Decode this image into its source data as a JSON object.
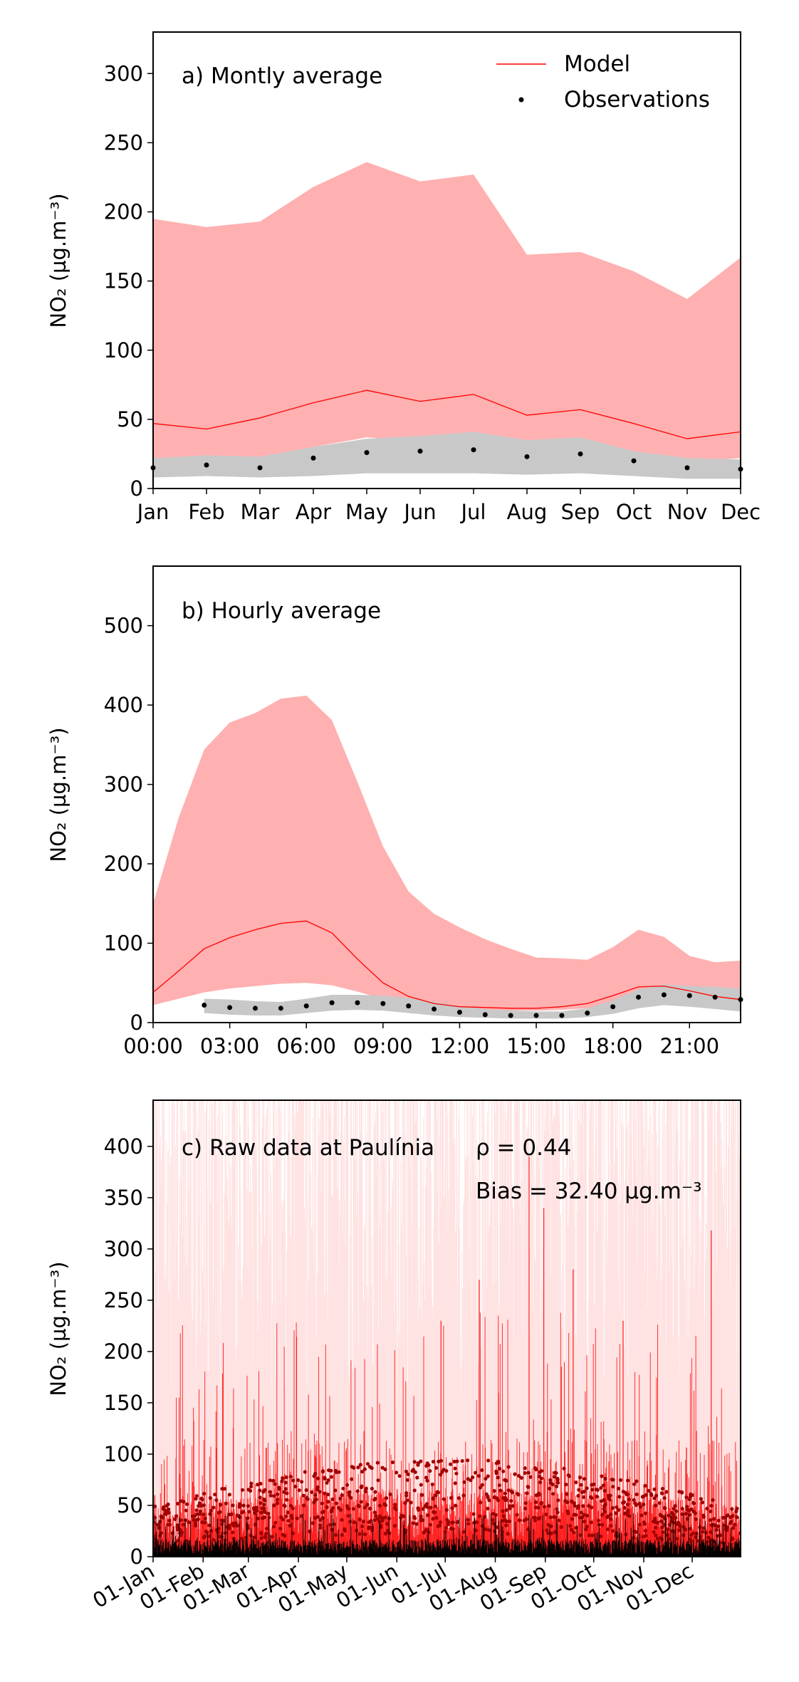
{
  "chart_data": [
    {
      "type": "line",
      "panel_label": "a) Montly average",
      "ylabel": "NO₂ (µg.m⁻³)",
      "ylim": [
        0,
        330
      ],
      "yticks": [
        0,
        50,
        100,
        150,
        200,
        250,
        300
      ],
      "x": [
        "Jan",
        "Feb",
        "Mar",
        "Apr",
        "May",
        "Jun",
        "Jul",
        "Aug",
        "Sep",
        "Oct",
        "Nov",
        "Dec"
      ],
      "legend": {
        "placement": "top-right",
        "entries": [
          "Model",
          "Observations"
        ]
      },
      "series": [
        {
          "name": "Model",
          "kind": "line",
          "color": "#ff0000",
          "values": [
            47,
            43,
            51,
            62,
            71,
            63,
            68,
            53,
            57,
            47,
            36,
            41
          ]
        },
        {
          "kind": "band",
          "color": "#ffb0b0",
          "lower": [
            22,
            23,
            23,
            30,
            37,
            34,
            41,
            31,
            33,
            26,
            19,
            22
          ],
          "upper": [
            195,
            189,
            193,
            218,
            236,
            222,
            227,
            169,
            171,
            157,
            137,
            167
          ]
        },
        {
          "name": "Observations",
          "kind": "points",
          "color": "#000000",
          "values": [
            15,
            17,
            15,
            22,
            26,
            27,
            28,
            23,
            25,
            20,
            15,
            14
          ]
        },
        {
          "kind": "band",
          "color": "#c8c8c8",
          "lower": [
            8,
            9,
            8,
            9,
            11,
            11,
            11,
            10,
            11,
            9,
            7,
            7
          ],
          "upper": [
            22,
            24,
            23,
            30,
            36,
            38,
            41,
            35,
            37,
            27,
            22,
            21
          ]
        }
      ]
    },
    {
      "type": "line",
      "panel_label": "b) Hourly average",
      "ylabel": "NO₂ (µg.m⁻³)",
      "ylim": [
        0,
        575
      ],
      "yticks": [
        0,
        100,
        200,
        300,
        400,
        500
      ],
      "x_tick_labels": [
        "00:00",
        "03:00",
        "06:00",
        "09:00",
        "12:00",
        "15:00",
        "18:00",
        "21:00"
      ],
      "hours": [
        0,
        1,
        2,
        3,
        4,
        5,
        6,
        7,
        8,
        9,
        10,
        11,
        12,
        13,
        14,
        15,
        16,
        17,
        18,
        19,
        20,
        21,
        22,
        23
      ],
      "series": [
        {
          "name": "Model",
          "kind": "line",
          "color": "#ff0000",
          "values": [
            38,
            65,
            93,
            107,
            117,
            125,
            128,
            113,
            80,
            50,
            33,
            24,
            20,
            19,
            18,
            18,
            20,
            24,
            34,
            45,
            46,
            40,
            33,
            29
          ]
        },
        {
          "kind": "band",
          "color": "#ffb0b0",
          "lower": [
            22,
            30,
            38,
            43,
            46,
            49,
            50,
            47,
            39,
            30,
            22,
            18,
            16,
            15,
            15,
            15,
            16,
            18,
            22,
            26,
            27,
            25,
            22,
            20
          ],
          "upper": [
            150,
            258,
            344,
            378,
            390,
            408,
            412,
            381,
            303,
            222,
            165,
            137,
            120,
            105,
            93,
            82,
            81,
            79,
            95,
            117,
            108,
            84,
            76,
            78
          ]
        },
        {
          "name": "Observations",
          "kind": "points",
          "color": "#000000",
          "hours": [
            2,
            3,
            4,
            5,
            6,
            7,
            8,
            9,
            10,
            11,
            12,
            13,
            14,
            15,
            16,
            17,
            18,
            19,
            20,
            21,
            22,
            23
          ],
          "values": [
            22,
            19,
            18,
            18,
            21,
            25,
            25,
            24,
            21,
            17,
            13,
            10,
            9,
            9,
            9,
            12,
            20,
            32,
            35,
            34,
            32,
            29
          ]
        },
        {
          "kind": "band",
          "color": "#c8c8c8",
          "hours": [
            2,
            3,
            4,
            5,
            6,
            7,
            8,
            9,
            10,
            11,
            12,
            13,
            14,
            15,
            16,
            17,
            18,
            19,
            20,
            21,
            22,
            23
          ],
          "lower": [
            12,
            10,
            9,
            9,
            12,
            15,
            16,
            15,
            12,
            9,
            7,
            6,
            5,
            5,
            5,
            7,
            11,
            18,
            22,
            20,
            17,
            14
          ],
          "upper": [
            30,
            29,
            27,
            26,
            30,
            35,
            35,
            34,
            31,
            26,
            21,
            17,
            15,
            14,
            14,
            18,
            28,
            42,
            48,
            46,
            45,
            43
          ]
        }
      ]
    },
    {
      "type": "line",
      "panel_label": "c) Raw data at Paulínia",
      "rho_text": "ρ = 0.44",
      "bias_text": "Bias = 32.40 µg.m⁻³",
      "ylabel": "NO₂ (µg.m⁻³)",
      "ylim": [
        0,
        445
      ],
      "yticks": [
        0,
        50,
        100,
        150,
        200,
        250,
        300,
        350,
        400
      ],
      "x_tick_labels": [
        "01-Jan",
        "01-Feb",
        "01-Mar",
        "01-Apr",
        "01-May",
        "01-Jun",
        "01-Jul",
        "01-Aug",
        "01-Sep",
        "01-Oct",
        "01-Nov",
        "01-Dec"
      ],
      "xlim_dates": [
        "2019-01-01",
        "2019-12-31"
      ],
      "series": [
        {
          "name": "Model",
          "kind": "hourly-line",
          "color": "#ff0000",
          "typical_peak_range": [
            50,
            230
          ],
          "max_peak": 390
        },
        {
          "kind": "hourly-band",
          "color": "#ffd0d0"
        },
        {
          "name": "Observations",
          "kind": "hourly-line",
          "color": "#000000",
          "typical_range": [
            0,
            40
          ]
        },
        {
          "kind": "points",
          "color": "#990000",
          "typical_range": [
            20,
            95
          ]
        }
      ]
    }
  ]
}
